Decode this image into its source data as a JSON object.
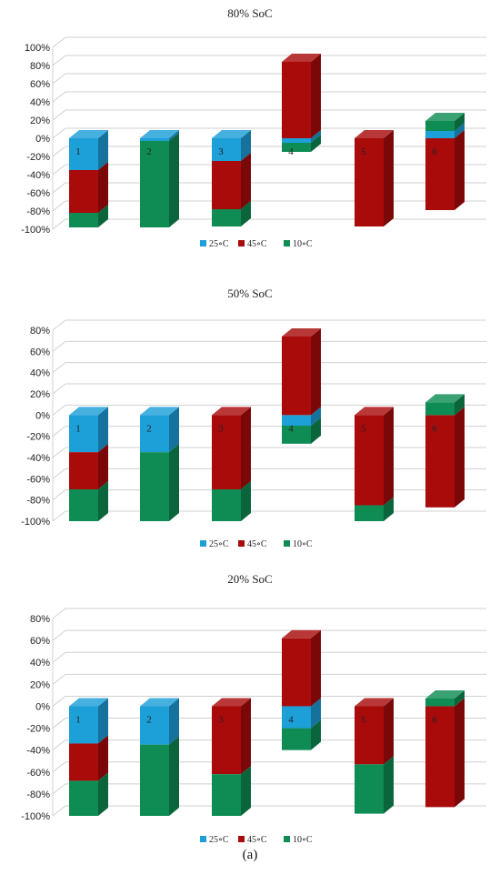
{
  "caption": "(a)",
  "colors": {
    "25C": "#1d9fd8",
    "45C": "#a90b0b",
    "10C": "#0e8c53"
  },
  "chart_data": [
    {
      "type": "bar",
      "title": "80% SoC",
      "categories": [
        "1",
        "2",
        "3",
        "4",
        "5",
        "6"
      ],
      "yticks": [
        "100%",
        "80%",
        "60%",
        "40%",
        "20%",
        "0%",
        "-20%",
        "-40%",
        "-60%",
        "-80%",
        "-100%"
      ],
      "ylim": [
        -100,
        100
      ],
      "legend": [
        "25∘C",
        "45∘C",
        "10∘C"
      ],
      "series": [
        {
          "name": "25∘C",
          "values": [
            -35,
            -3,
            -25,
            -5,
            0,
            8
          ]
        },
        {
          "name": "45∘C",
          "values": [
            -47,
            0,
            -53,
            84,
            -97,
            -79
          ]
        },
        {
          "name": "10∘C",
          "values": [
            -16,
            -95,
            -19,
            -10,
            0,
            11
          ]
        }
      ]
    },
    {
      "type": "bar",
      "title": "50% SoC",
      "categories": [
        "1",
        "2",
        "3",
        "4",
        "5",
        "6"
      ],
      "yticks": [
        "80%",
        "60%",
        "40%",
        "20%",
        "0%",
        "-20%",
        "-40%",
        "-60%",
        "-80%",
        "-100%"
      ],
      "ylim": [
        -100,
        80
      ],
      "legend": [
        "25∘C",
        "45∘C",
        "10∘C"
      ],
      "series": [
        {
          "name": "25∘C",
          "values": [
            -35,
            -35,
            0,
            -10,
            0,
            0
          ]
        },
        {
          "name": "45∘C",
          "values": [
            -35,
            0,
            -70,
            74,
            -85,
            -87
          ]
        },
        {
          "name": "10∘C",
          "values": [
            -30,
            -65,
            -30,
            -17,
            -15,
            12
          ]
        }
      ]
    },
    {
      "type": "bar",
      "title": "20% SoC",
      "categories": [
        "1",
        "2",
        "3",
        "4",
        "5",
        "6"
      ],
      "yticks": [
        "80%",
        "60%",
        "40%",
        "20%",
        "0%",
        "-20%",
        "-40%",
        "-60%",
        "-80%",
        "-100%"
      ],
      "ylim": [
        -100,
        80
      ],
      "legend": [
        "25∘C",
        "45∘C",
        "10∘C"
      ],
      "series": [
        {
          "name": "25∘C",
          "values": [
            -34,
            -35,
            0,
            -20,
            0,
            0
          ]
        },
        {
          "name": "45∘C",
          "values": [
            -34,
            0,
            -62,
            62,
            -53,
            -92
          ]
        },
        {
          "name": "10∘C",
          "values": [
            -32,
            -65,
            -38,
            -20,
            -45,
            7
          ]
        }
      ]
    }
  ]
}
